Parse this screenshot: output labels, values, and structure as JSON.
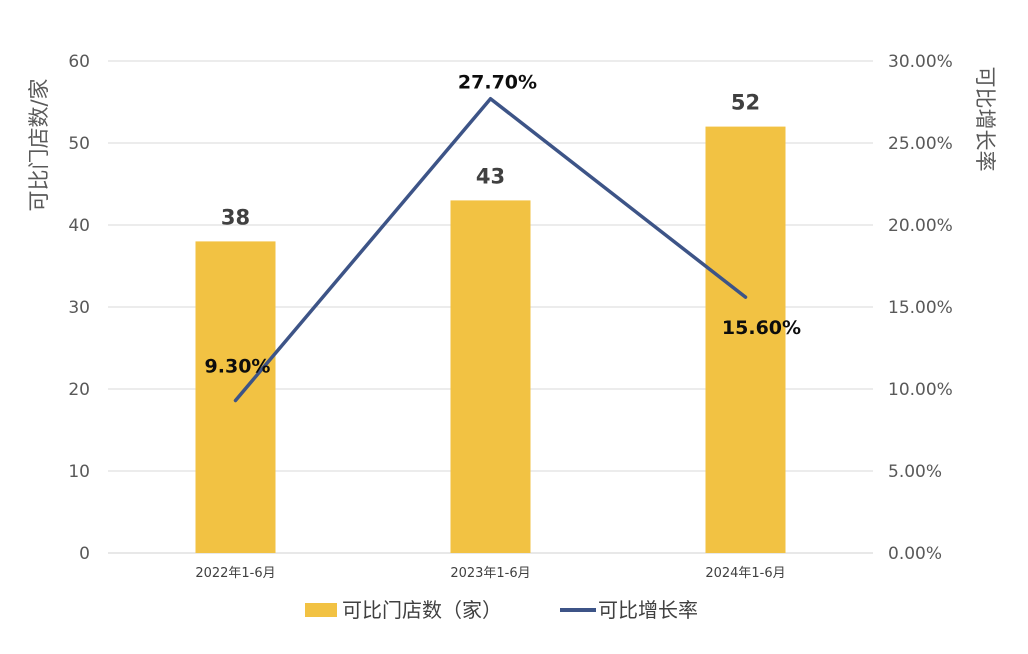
{
  "chart_data": {
    "type": "bar",
    "categories": [
      "2022年1-6月",
      "2023年1-6月",
      "2024年1-6月"
    ],
    "series": [
      {
        "name": "可比门店数（家）",
        "type": "bar",
        "axis": "left",
        "values": [
          38,
          43,
          52
        ],
        "data_labels": [
          "38",
          "43",
          "52"
        ],
        "color": "#F2C243"
      },
      {
        "name": "可比增长率",
        "type": "line",
        "axis": "right",
        "values": [
          9.3,
          27.7,
          15.6
        ],
        "data_labels": [
          "9.30%",
          "27.70%",
          "15.60%"
        ],
        "color": "#3D5487"
      }
    ],
    "ylabel": "可比门店数/家",
    "y2label": "可比增长率",
    "ylim": [
      0,
      60
    ],
    "y_ticks": [
      "0",
      "10",
      "20",
      "30",
      "40",
      "50",
      "60"
    ],
    "y2lim": [
      0,
      30
    ],
    "y2_ticks": [
      "0.00%",
      "5.00%",
      "10.00%",
      "15.00%",
      "20.00%",
      "25.00%",
      "30.00%"
    ],
    "grid": true,
    "legend_position": "bottom"
  }
}
